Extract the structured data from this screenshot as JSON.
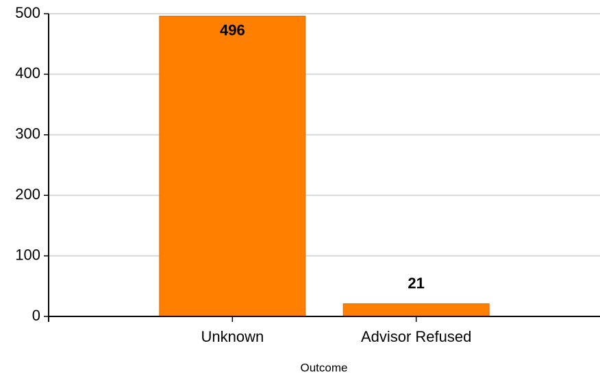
{
  "chart_data": {
    "type": "bar",
    "x_label": "Outcome",
    "categories": [
      "Unknown",
      "Advisor Refused"
    ],
    "values": [
      496,
      21
    ],
    "color": "#ff8000",
    "ylim": [
      0,
      500
    ],
    "yticks": [
      0,
      100,
      200,
      300,
      400,
      500
    ],
    "grid": true
  }
}
